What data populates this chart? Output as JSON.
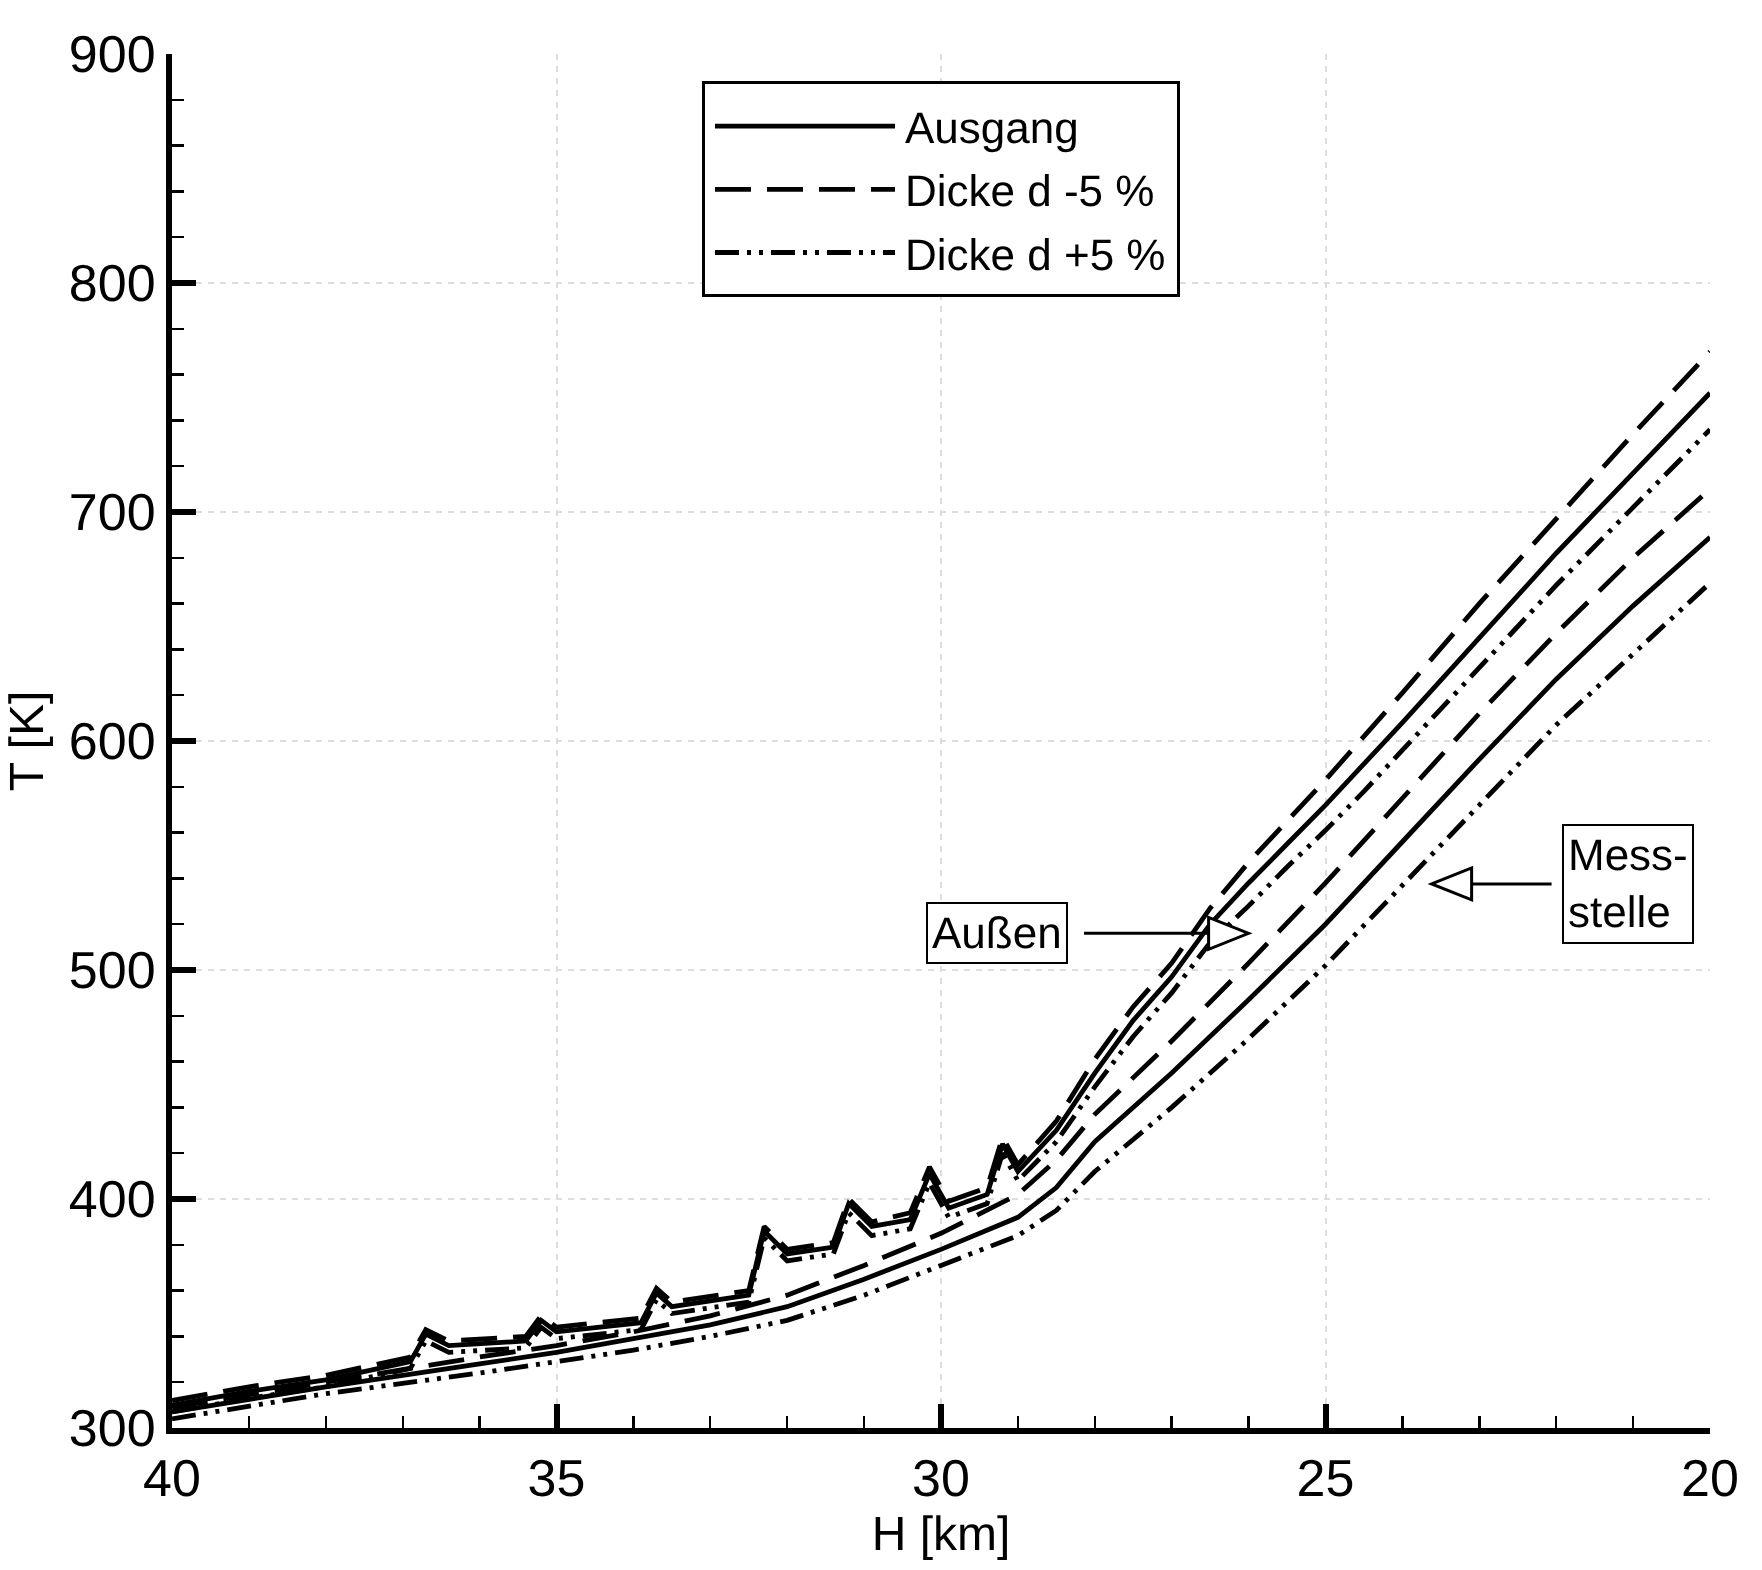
{
  "chart_data": {
    "type": "line",
    "xlabel": "H [km]",
    "ylabel": "T [K]",
    "xlim": [
      40,
      20
    ],
    "xticks": [
      40,
      35,
      30,
      25,
      20
    ],
    "ylim": [
      300,
      900
    ],
    "yticks": [
      300,
      400,
      500,
      600,
      700,
      800,
      900
    ],
    "grid": true,
    "legend": "top",
    "marker": "none",
    "annotations": [
      "Außen",
      "Mess-\nstelle"
    ],
    "series": [
      {
        "name": "Ausgang",
        "color": "#000000",
        "line_style": "solid",
        "x": [
          40,
          39,
          38,
          36.9,
          36.7,
          36.4,
          35.4,
          35.2,
          35.0,
          33.9,
          33.7,
          33.5,
          32.5,
          32.3,
          32.0,
          31.4,
          31.2,
          30.9,
          30.4,
          30.15,
          29.9,
          29.4,
          29.2,
          29.0,
          28.5,
          28,
          27.5,
          27,
          26.5,
          26,
          25.5,
          25,
          24.5,
          24,
          23,
          22,
          21,
          20
        ],
        "values": [
          310,
          316,
          321,
          329,
          341,
          336,
          338,
          347,
          342,
          346,
          359,
          353,
          358,
          386,
          376,
          379,
          398,
          388,
          391,
          411,
          396,
          402,
          424,
          412,
          430,
          455,
          478,
          497,
          520,
          538,
          555,
          572,
          590,
          608,
          645,
          682,
          717,
          752
        ]
      },
      {
        "name": "Dicke d -5 %",
        "color": "#000000",
        "line_style": "dashed",
        "x": [
          40,
          39,
          38,
          36.9,
          36.7,
          36.4,
          35.4,
          35.2,
          35.0,
          33.9,
          33.7,
          33.5,
          32.5,
          32.3,
          32.0,
          31.4,
          31.2,
          30.9,
          30.4,
          30.15,
          29.9,
          29.4,
          29.2,
          29.0,
          28.5,
          28,
          27.5,
          27,
          26.5,
          26,
          25.5,
          25,
          24.5,
          24,
          23,
          22,
          21,
          20
        ],
        "values": [
          312,
          318,
          323,
          331,
          343,
          338,
          340,
          349,
          344,
          348,
          361,
          355,
          360,
          388,
          378,
          381,
          400,
          390,
          394,
          414,
          399,
          405,
          427,
          415,
          434,
          461,
          484,
          503,
          527,
          547,
          565,
          583,
          602,
          621,
          660,
          697,
          734,
          770
        ]
      },
      {
        "name": "Dicke d +5 %",
        "color": "#000000",
        "line_style": "dashdot",
        "x": [
          40,
          39,
          38,
          36.9,
          36.7,
          36.4,
          35.4,
          35.2,
          35.0,
          33.9,
          33.7,
          33.5,
          32.5,
          32.3,
          32.0,
          31.4,
          31.2,
          30.9,
          30.4,
          30.15,
          29.9,
          29.4,
          29.2,
          29.0,
          28.5,
          28,
          27.5,
          27,
          26.5,
          26,
          25.5,
          25,
          24.5,
          24,
          23,
          22,
          21,
          20
        ],
        "values": [
          307,
          313,
          318,
          326,
          338,
          333,
          335,
          344,
          339,
          343,
          356,
          350,
          355,
          383,
          373,
          376,
          394,
          384,
          387,
          407,
          392,
          398,
          420,
          408,
          425,
          449,
          471,
          490,
          512,
          528,
          545,
          561,
          578,
          596,
          632,
          668,
          702,
          736
        ]
      },
      {
        "color": "#000000",
        "line_style": "solid",
        "x": [
          40,
          38,
          36,
          35,
          34,
          33,
          32,
          31,
          30,
          29,
          28.5,
          28,
          27,
          26,
          25,
          24,
          23,
          22,
          21,
          20
        ],
        "values": [
          307,
          318,
          328,
          333,
          339,
          345,
          353,
          365,
          378,
          392,
          405,
          425,
          455,
          487,
          520,
          556,
          592,
          627,
          659,
          689
        ]
      },
      {
        "color": "#000000",
        "line_style": "dashed",
        "x": [
          40,
          38,
          36,
          35,
          34,
          33,
          32,
          31,
          30,
          29,
          28.5,
          28,
          27,
          26,
          25,
          24,
          23,
          22,
          21,
          20
        ],
        "values": [
          309,
          320,
          331,
          336,
          342,
          349,
          358,
          371,
          385,
          402,
          417,
          437,
          469,
          503,
          538,
          575,
          612,
          647,
          680,
          710
        ]
      },
      {
        "color": "#000000",
        "line_style": "dashdot",
        "x": [
          40,
          38,
          36,
          35,
          34,
          33,
          32,
          31,
          30,
          29,
          28.5,
          28,
          27,
          26,
          25,
          24,
          23,
          22,
          21,
          20
        ],
        "values": [
          304,
          315,
          324,
          329,
          334,
          340,
          347,
          358,
          371,
          384,
          395,
          412,
          440,
          470,
          502,
          537,
          572,
          607,
          638,
          669
        ]
      }
    ]
  }
}
